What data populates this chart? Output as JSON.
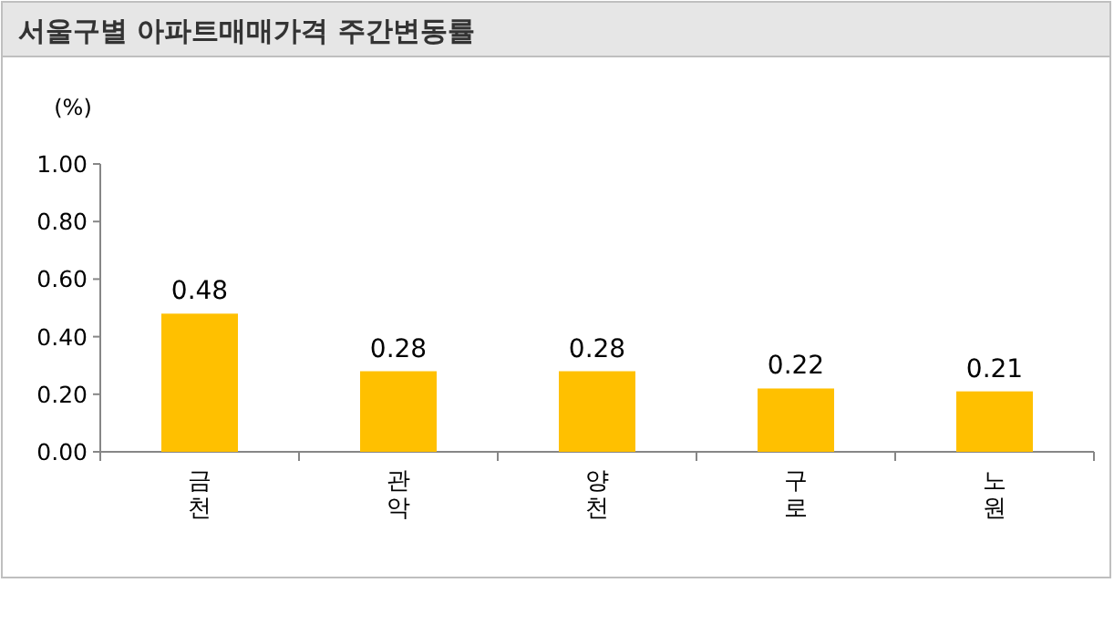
{
  "chart_data": {
    "type": "bar",
    "title": "서울구별 아파트매매가격 주간변동률",
    "ylabel": "(%)",
    "categories": [
      "금천",
      "관악",
      "양천",
      "구로",
      "노원"
    ],
    "values": [
      0.48,
      0.28,
      0.28,
      0.22,
      0.21
    ],
    "color": "#ffc000",
    "ylim": [
      0,
      1
    ],
    "yticks": [
      {
        "value": 0,
        "label": "0.00"
      },
      {
        "value": 0.2,
        "label": "0.20"
      },
      {
        "value": 0.4,
        "label": "0.40"
      },
      {
        "value": 0.6,
        "label": "0.60"
      },
      {
        "value": 0.8,
        "label": "0.80"
      },
      {
        "value": 1,
        "label": "1.00"
      }
    ],
    "data_labels": true,
    "grid": false
  }
}
